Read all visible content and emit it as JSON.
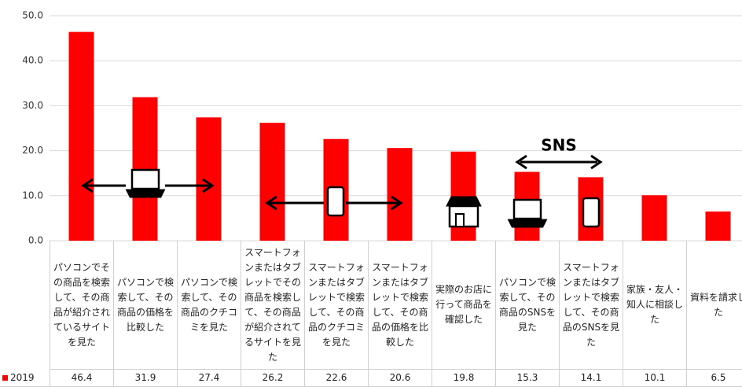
{
  "chart_data": {
    "type": "bar",
    "categories": [
      "パソコンでその商品を検索して、その商品が紹介されているサイトを見た",
      "パソコンで検索して、その商品の価格を比較した",
      "パソコンで検索して、その商品のクチコミを見た",
      "スマートフォンまたはタブレットでその商品を検索して、その商品が紹介されてるサイトを見た",
      "スマートフォンまたはタブレットで検索して、その商品のクチコミを見た",
      "スマートフォンまたはタブレットで検索して、その商品の価格を比較した",
      "実際のお店に行って商品を確認した",
      "パソコンで検索して、その商品のSNSを見た",
      "スマートフォンまたはタブレットで検索して、その商品のSNSを見た",
      "家族・友人・知人に相談した",
      "資料を請求した"
    ],
    "series": [
      {
        "name": "2019",
        "color": "#ff0000",
        "values": [
          46.4,
          31.9,
          27.4,
          26.2,
          22.6,
          20.6,
          19.8,
          15.3,
          14.1,
          10.1,
          6.5
        ]
      }
    ],
    "ylim": [
      0,
      50
    ],
    "yticks": [
      {
        "value": 0,
        "label": "0.0"
      },
      {
        "value": 10,
        "label": "10.0"
      },
      {
        "value": 20,
        "label": "20.0"
      },
      {
        "value": 30,
        "label": "30.0"
      },
      {
        "value": 40,
        "label": "40.0"
      },
      {
        "value": 50,
        "label": "50.0"
      }
    ],
    "grid": true,
    "annotations": [
      "SNS"
    ]
  }
}
